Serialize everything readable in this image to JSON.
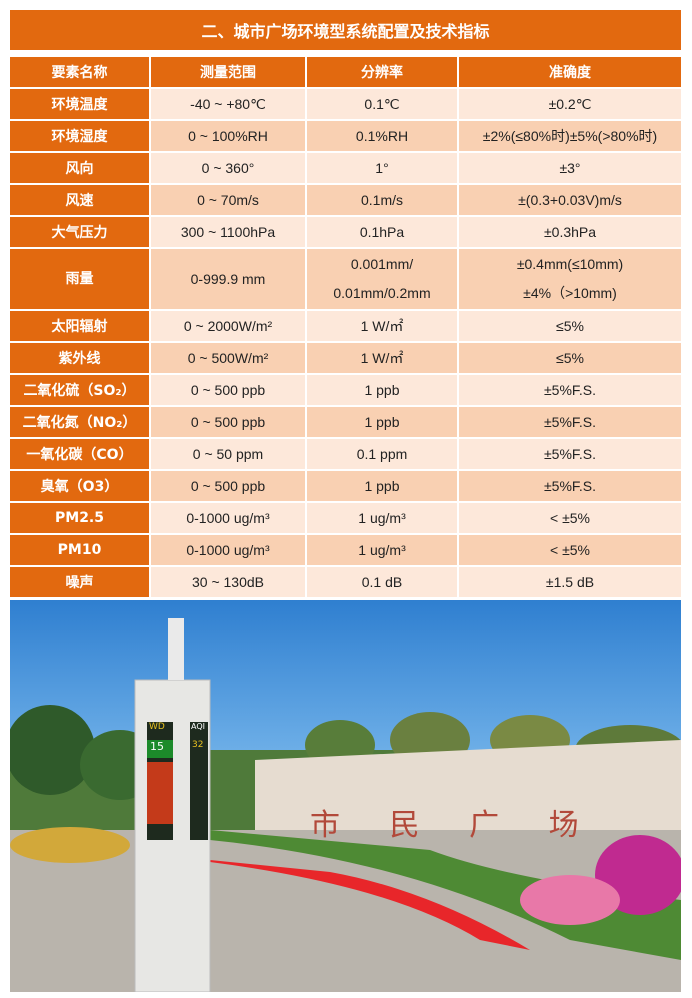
{
  "title": "二、城市广场环境型系统配置及技术指标",
  "table": {
    "headers": [
      "要素名称",
      "测量范围",
      "分辨率",
      "准确度"
    ],
    "rows": [
      [
        "环境温度",
        "-40 ~ +80℃",
        "0.1℃",
        "±0.2℃"
      ],
      [
        "环境湿度",
        "0 ~ 100%RH",
        "0.1%RH",
        "±2%(≤80%时)±5%(>80%时)"
      ],
      [
        "风向",
        "0 ~ 360°",
        "1°",
        "±3°"
      ],
      [
        "风速",
        "0 ~ 70m/s",
        "0.1m/s",
        "±(0.3+0.03V)m/s"
      ],
      [
        "大气压力",
        "300 ~ 1100hPa",
        "0.1hPa",
        "±0.3hPa"
      ],
      [
        "雨量",
        "0-999.9 mm",
        "0.001mm/\n0.01mm/0.2mm",
        "±0.4mm(≤10mm)\n±4%（>10mm)"
      ],
      [
        "太阳辐射",
        "0 ~ 2000W/m²",
        "1 W/㎡",
        "≤5%"
      ],
      [
        "紫外线",
        "0 ~ 500W/m²",
        "1 W/㎡",
        "≤5%"
      ],
      [
        "二氧化硫（SO₂）",
        "0 ~ 500 ppb",
        "1 ppb",
        "±5%F.S."
      ],
      [
        "二氧化氮（NO₂）",
        "0 ~ 500 ppb",
        "1 ppb",
        "±5%F.S."
      ],
      [
        "一氧化碳（CO）",
        "0 ~ 50 ppm",
        "0.1 ppm",
        "±5%F.S."
      ],
      [
        "臭氧（O3）",
        "0 ~ 500 ppb",
        "1 ppb",
        "±5%F.S."
      ],
      [
        "PM2.5",
        "0-1000 ug/m³",
        "1 ug/m³",
        "< ±5%"
      ],
      [
        "PM10",
        "0-1000 ug/m³",
        "1 ug/m³",
        "< ±5%"
      ],
      [
        "噪声",
        "30 ~ 130dB",
        "0.1 dB",
        "±1.5 dB"
      ]
    ]
  },
  "photo": {
    "wall_text": "市 民 广 场",
    "display_left": [
      "WD",
      "15"
    ],
    "display_right": [
      "AQI",
      "32"
    ]
  }
}
